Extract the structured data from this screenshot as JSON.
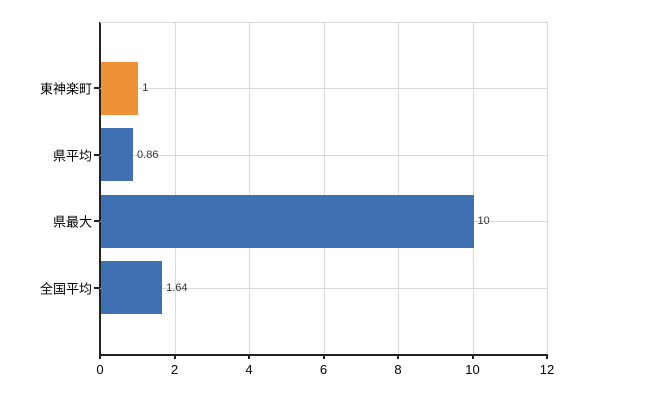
{
  "chart_data": {
    "type": "bar",
    "orientation": "horizontal",
    "title": "",
    "xlabel": "",
    "ylabel": "",
    "categories": [
      "東神楽町",
      "県平均",
      "県最大",
      "全国平均"
    ],
    "values": [
      1,
      0.86,
      10,
      1.64
    ],
    "value_labels": [
      "1",
      "0.86",
      "10",
      "1.64"
    ],
    "bar_colors": [
      "#ef9136",
      "#3f70b1",
      "#3f70b1",
      "#3f70b1"
    ],
    "xlim": [
      0,
      12
    ],
    "xticks": [
      0,
      2,
      4,
      6,
      8,
      10,
      12
    ],
    "xtick_labels": [
      "0",
      "2",
      "4",
      "6",
      "8",
      "10",
      "12"
    ],
    "grid": true,
    "legend_position": "none",
    "colors": {
      "bar_orange": "#ef9136",
      "bar_blue": "#3f70b1",
      "grid": "#d9d9d9",
      "axis": "#222222",
      "text": "#000000",
      "value_text": "#333333",
      "background": "#ffffff"
    }
  }
}
